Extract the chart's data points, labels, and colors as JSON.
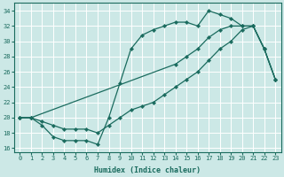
{
  "xlabel": "Humidex (Indice chaleur)",
  "xlim": [
    -0.5,
    23.5
  ],
  "ylim": [
    15.5,
    35
  ],
  "yticks": [
    16,
    18,
    20,
    22,
    24,
    26,
    28,
    30,
    32,
    34
  ],
  "xticks": [
    0,
    1,
    2,
    3,
    4,
    5,
    6,
    7,
    8,
    9,
    10,
    11,
    12,
    13,
    14,
    15,
    16,
    17,
    18,
    19,
    20,
    21,
    22,
    23
  ],
  "bg_color": "#cce8e6",
  "line_color": "#1a6b5e",
  "grid_color": "#ffffff",
  "line1_x": [
    0,
    1,
    2,
    3,
    4,
    5,
    6,
    7,
    8,
    9,
    10,
    11,
    12,
    13,
    14,
    15,
    16,
    17,
    18,
    19,
    20,
    21,
    22,
    23
  ],
  "line1_y": [
    20,
    20,
    19,
    17.5,
    17,
    17,
    17,
    16.5,
    20,
    24.5,
    29,
    30.8,
    31.5,
    32,
    32.5,
    32.5,
    32,
    34,
    33.5,
    33,
    32,
    32,
    29,
    25
  ],
  "line2_x": [
    0,
    1,
    14,
    15,
    16,
    17,
    18,
    19,
    20,
    21,
    22,
    23
  ],
  "line2_y": [
    20,
    20,
    27,
    28,
    29,
    30.5,
    31.5,
    32,
    32,
    32,
    29,
    25
  ],
  "line3_x": [
    0,
    1,
    2,
    3,
    4,
    5,
    6,
    7,
    8,
    9,
    10,
    11,
    12,
    13,
    14,
    15,
    16,
    17,
    18,
    19,
    20,
    21,
    22,
    23
  ],
  "line3_y": [
    20,
    20,
    19.5,
    19,
    18.5,
    18.5,
    18.5,
    18,
    19,
    20,
    21,
    21.5,
    22,
    23,
    24,
    25,
    26,
    27.5,
    29,
    30,
    31.5,
    32,
    29,
    25
  ]
}
